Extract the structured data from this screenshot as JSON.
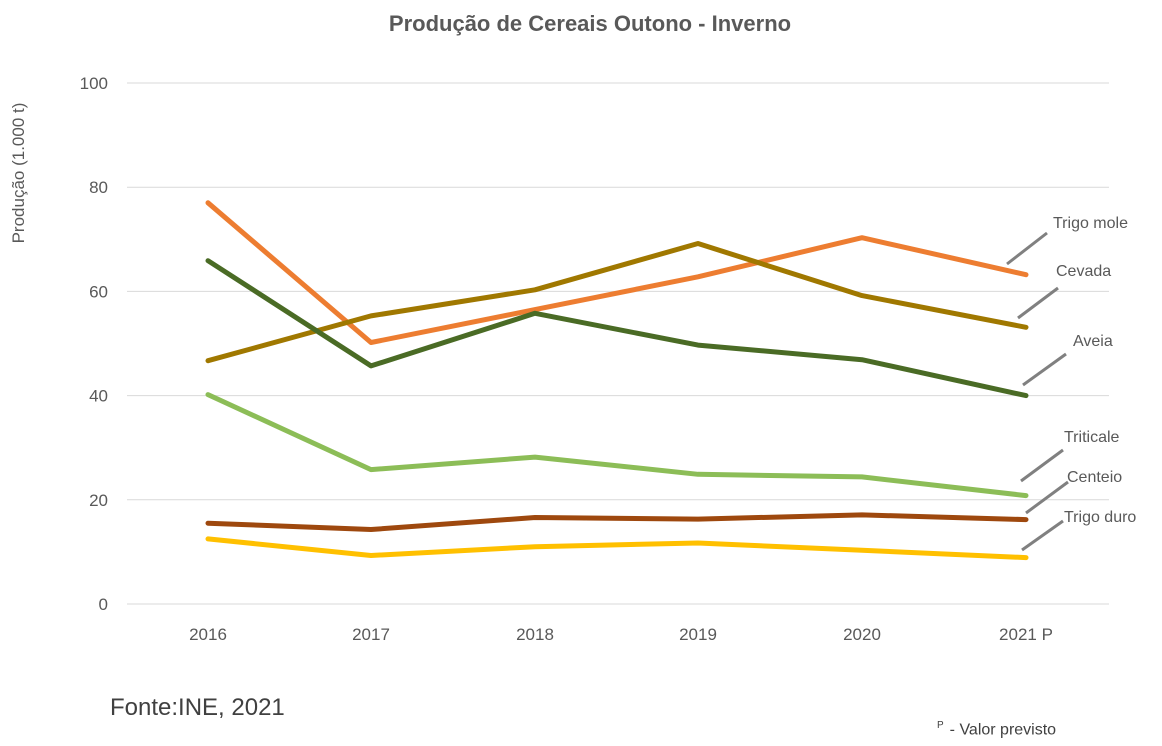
{
  "chart_data": {
    "type": "line",
    "title": "Produção de Cereais Outono - Inverno",
    "ylabel": "Produção (1.000 t)",
    "xlabel": "",
    "categories": [
      "2016",
      "2017",
      "2018",
      "2019",
      "2020",
      "2021 P"
    ],
    "ylim": [
      0,
      100
    ],
    "yticks": [
      0,
      20,
      40,
      60,
      80,
      100
    ],
    "grid": true,
    "series": [
      {
        "name": "Trigo mole",
        "color": "#ED7D31",
        "values": [
          77,
          50.2,
          56.5,
          62.8,
          70.3,
          63.2
        ]
      },
      {
        "name": "Cevada",
        "color": "#A07800",
        "values": [
          46.7,
          55.3,
          60.3,
          69.2,
          59.2,
          53.1
        ]
      },
      {
        "name": "Aveia",
        "color": "#4A6B25",
        "values": [
          65.9,
          45.7,
          55.8,
          49.7,
          46.9,
          40.0
        ]
      },
      {
        "name": "Triticale",
        "color": "#8CBD57",
        "values": [
          40.2,
          25.8,
          28.2,
          24.9,
          24.4,
          20.8
        ]
      },
      {
        "name": "Centeio",
        "color": "#9E480E",
        "values": [
          15.5,
          14.3,
          16.6,
          16.3,
          17.1,
          16.2
        ]
      },
      {
        "name": "Trigo duro",
        "color": "#FFC000",
        "values": [
          12.5,
          9.3,
          11.0,
          11.7,
          10.3,
          8.9
        ]
      }
    ]
  },
  "source": "Fonte:INE, 2021",
  "note": {
    "symbol": "P",
    "text": "- Valor previsto"
  }
}
